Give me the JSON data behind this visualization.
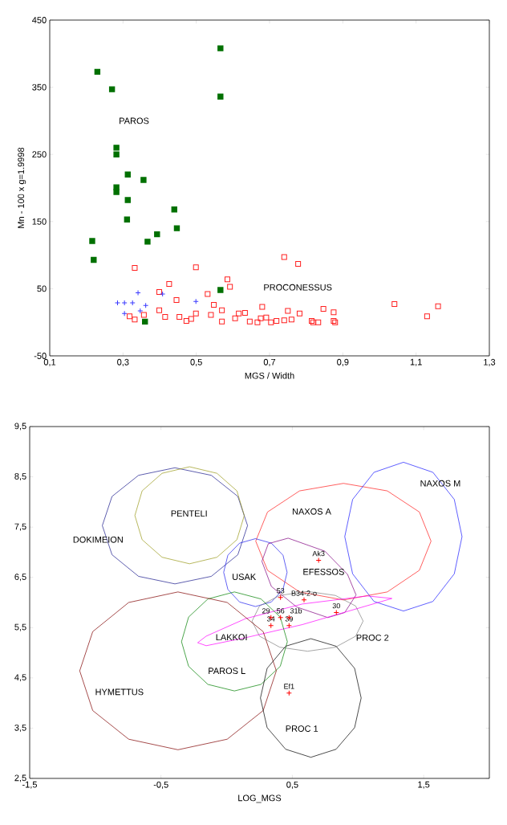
{
  "chart_data": [
    {
      "type": "scatter",
      "xlabel": "MGS / Width",
      "ylabel": "Mn - 100 x g=1.9998",
      "xlim": [
        0.1,
        1.3
      ],
      "ylim": [
        -50,
        450
      ],
      "xticks": [
        {
          "value": 0.1,
          "label": "0,1"
        },
        {
          "value": 0.3,
          "label": "0,3"
        },
        {
          "value": 0.5,
          "label": "0,5"
        },
        {
          "value": 0.7,
          "label": "0,7"
        },
        {
          "value": 0.9,
          "label": "0,9"
        },
        {
          "value": 1.1,
          "label": "1,1"
        },
        {
          "value": 1.3,
          "label": "1,3"
        }
      ],
      "yticks": [
        -50,
        50,
        150,
        250,
        350,
        450
      ],
      "series": [
        {
          "color": "#007000",
          "marker": "square",
          "x": [
            0.23,
            0.27,
            0.566,
            0.566,
            0.282,
            0.282,
            0.313,
            0.356,
            0.282,
            0.282,
            0.313,
            0.44,
            0.311,
            0.447,
            0.393,
            0.216,
            0.367,
            0.22,
            0.566,
            0.36
          ],
          "values": [
            373,
            347,
            408,
            336,
            260,
            250,
            220,
            212,
            201,
            194,
            182,
            168,
            153,
            140,
            131,
            121,
            120,
            93,
            48,
            1
          ]
        },
        {
          "color": "#ff2020",
          "marker": "square_open",
          "x": [
            0.332,
            0.499,
            0.74,
            0.778,
            0.426,
            0.585,
            0.592,
            0.399,
            0.531,
            0.446,
            0.548,
            0.68,
            0.75,
            0.782,
            0.57,
            0.399,
            0.318,
            0.332,
            0.357,
            0.415,
            0.454,
            0.473,
            0.486,
            0.499,
            0.54,
            0.57,
            0.606,
            0.616,
            0.633,
            0.646,
            0.667,
            0.676,
            0.691,
            0.704,
            0.719,
            0.74,
            0.76,
            0.815,
            0.819,
            0.833,
            0.847,
            0.875,
            0.875,
            0.879,
            1.041,
            1.13,
            1.16
          ],
          "values": [
            81,
            82,
            97,
            87,
            57,
            64,
            53,
            45,
            42,
            33,
            26,
            23,
            17,
            13,
            18,
            18,
            9,
            4,
            11,
            8,
            8,
            2,
            5,
            13,
            11,
            1,
            6,
            13,
            14,
            1,
            0,
            6,
            7,
            0,
            2,
            3,
            4,
            2,
            0,
            0,
            20,
            15,
            2,
            0,
            27,
            9,
            24
          ]
        },
        {
          "color": "#3a3aff",
          "marker": "cross",
          "x": [
            0.285,
            0.304,
            0.326,
            0.341,
            0.304,
            0.347,
            0.362,
            0.408,
            0.499
          ],
          "values": [
            29,
            29,
            29,
            44,
            13,
            17,
            25,
            42,
            31
          ]
        }
      ],
      "annotations": [
        "PAROS",
        "PROCONESSUS"
      ]
    },
    {
      "type": "scatter",
      "xlabel": "LOG_MGS",
      "xlim": [
        -1.5,
        2.0
      ],
      "ylim": [
        2.5,
        9.5
      ],
      "xticks": [
        {
          "value": -1.5,
          "label": "-1,5"
        },
        {
          "value": -0.5,
          "label": "-0,5"
        },
        {
          "value": 0.5,
          "label": "0,5"
        },
        {
          "value": 1.5,
          "label": "1,5"
        }
      ],
      "yticks": [
        {
          "value": 2.5,
          "label": "2,5"
        },
        {
          "value": 3.5,
          "label": "3,5"
        },
        {
          "value": 4.5,
          "label": "4,5"
        },
        {
          "value": 5.5,
          "label": "5,5"
        },
        {
          "value": 6.5,
          "label": "6,5"
        },
        {
          "value": 7.5,
          "label": "7,5"
        },
        {
          "value": 8.5,
          "label": "8,5"
        },
        {
          "value": 9.5,
          "label": "9,5"
        }
      ],
      "series": [
        {
          "type": "line",
          "color": "#1a1a8c",
          "x": [
            -0.947,
            -0.873,
            -0.671,
            -0.394,
            -0.117,
            0.085,
            0.159
          ],
          "values": [
            7.53,
            8.11,
            8.53,
            8.68,
            8.53,
            8.11,
            7.53
          ]
        },
        {
          "type": "line",
          "color": "#1a1a8c",
          "x": [
            -0.947,
            -0.873,
            -0.671,
            -0.394,
            -0.117,
            0.085,
            0.159
          ],
          "values": [
            7.53,
            6.95,
            6.52,
            6.37,
            6.52,
            6.95,
            7.53
          ]
        },
        {
          "type": "line",
          "color": "#9a9a1a",
          "x": [
            -0.699,
            -0.644,
            -0.492,
            -0.283,
            -0.074,
            0.078,
            0.134
          ],
          "values": [
            7.73,
            8.22,
            8.57,
            8.7,
            8.57,
            8.22,
            7.73
          ]
        },
        {
          "type": "line",
          "color": "#9a9a1a",
          "x": [
            -0.699,
            -0.644,
            -0.492,
            -0.283,
            -0.074,
            0.078,
            0.134
          ],
          "values": [
            7.73,
            7.25,
            6.9,
            6.77,
            6.9,
            7.25,
            7.73
          ]
        },
        {
          "type": "line",
          "color": "#ff1a1a",
          "x": [
            0.221,
            0.311,
            0.555,
            0.889,
            1.223,
            1.467,
            1.556
          ],
          "values": [
            7.22,
            7.8,
            8.22,
            8.37,
            8.22,
            7.8,
            7.22
          ]
        },
        {
          "type": "line",
          "color": "#ff1a1a",
          "x": [
            0.221,
            0.311,
            0.555,
            0.889,
            1.223,
            1.467,
            1.556
          ],
          "values": [
            7.22,
            6.64,
            6.21,
            6.05,
            6.21,
            6.64,
            7.22
          ]
        },
        {
          "type": "line",
          "color": "#1a1aff",
          "x": [
            0.899,
            0.959,
            1.122,
            1.346,
            1.57,
            1.733,
            1.792,
            null,
            0.899,
            0.959,
            1.122,
            1.346,
            1.57,
            1.733,
            1.792
          ],
          "values": [
            7.31,
            8.05,
            8.59,
            8.79,
            8.59,
            8.05,
            7.31,
            null,
            7.31,
            6.57,
            6.02,
            5.83,
            6.02,
            6.57,
            7.31
          ]
        },
        {
          "type": "line",
          "color": "#2020ee",
          "x": [
            -0.023,
            0.009,
            0.098,
            0.219,
            0.34,
            0.429,
            0.46
          ],
          "values": [
            6.6,
            6.94,
            7.18,
            7.27,
            7.18,
            6.94,
            6.6
          ]
        },
        {
          "type": "line",
          "color": "#2020ee",
          "x": [
            -0.023,
            0.009,
            0.098,
            0.219,
            0.34,
            0.429,
            0.46
          ],
          "values": [
            6.6,
            6.26,
            6.01,
            5.92,
            6.01,
            6.26,
            6.6
          ]
        },
        {
          "type": "line",
          "color": "#800080",
          "x": [
            0.268,
            0.317,
            0.468,
            0.748,
            0.92,
            0.985
          ],
          "values": [
            6.82,
            7.17,
            7.28,
            7.02,
            6.56,
            6.15
          ]
        },
        {
          "type": "line",
          "color": "#800080",
          "x": [
            0.268,
            0.34,
            0.533,
            0.77,
            0.899,
            0.985
          ],
          "values": [
            6.82,
            6.32,
            5.91,
            5.7,
            5.8,
            6.15
          ]
        },
        {
          "type": "line",
          "color": "#808080",
          "x": [
            0.193,
            0.25,
            0.404,
            0.616,
            0.828,
            0.982,
            1.039
          ],
          "values": [
            5.63,
            5.93,
            6.14,
            6.22,
            6.14,
            5.93,
            5.63
          ]
        },
        {
          "type": "line",
          "color": "#808080",
          "x": [
            0.193,
            0.25,
            0.404,
            0.616,
            0.828,
            0.982,
            1.039
          ],
          "values": [
            5.63,
            5.33,
            5.11,
            5.03,
            5.11,
            5.33,
            5.63
          ]
        },
        {
          "type": "line",
          "color": "#ff00ff",
          "x": [
            -0.221,
            -0.156,
            0.145,
            0.576,
            1.071,
            1.258
          ],
          "values": [
            5.2,
            5.33,
            5.68,
            5.97,
            6.13,
            6.08
          ]
        },
        {
          "type": "line",
          "color": "#ff00ff",
          "x": [
            -0.221,
            -0.156,
            0.145,
            0.576,
            1.114,
            1.258
          ],
          "values": [
            5.2,
            5.14,
            5.3,
            5.56,
            5.97,
            6.08
          ]
        },
        {
          "type": "line",
          "color": "#008000",
          "x": [
            -0.344,
            -0.29,
            -0.143,
            0.059,
            0.261,
            0.408,
            0.462
          ],
          "values": [
            5.22,
            5.71,
            6.07,
            6.21,
            6.07,
            5.71,
            5.22
          ]
        },
        {
          "type": "line",
          "color": "#008000",
          "x": [
            -0.344,
            -0.29,
            -0.143,
            0.059,
            0.261,
            0.408,
            0.462
          ],
          "values": [
            5.22,
            4.73,
            4.37,
            4.24,
            4.37,
            4.73,
            5.22
          ]
        },
        {
          "type": "line",
          "color": "#800000",
          "x": [
            -1.119,
            -1.02,
            -0.746,
            -0.371,
            0.004,
            0.278,
            0.378
          ],
          "values": [
            4.64,
            5.42,
            6.0,
            6.21,
            6.0,
            5.42,
            4.64
          ]
        },
        {
          "type": "line",
          "color": "#800000",
          "x": [
            -1.119,
            -1.02,
            -0.746,
            -0.371,
            0.004,
            0.278,
            0.378
          ],
          "values": [
            4.64,
            3.85,
            3.28,
            3.07,
            3.28,
            3.85,
            4.64
          ]
        },
        {
          "type": "line",
          "color": "#000000",
          "x": [
            0.257,
            0.308,
            0.449,
            0.641,
            0.833,
            0.974,
            1.024,
            null,
            0.257,
            0.308,
            0.449,
            0.641,
            0.833,
            0.974,
            1.024
          ],
          "values": [
            4.1,
            4.69,
            5.13,
            5.28,
            5.13,
            4.69,
            4.1,
            null,
            4.1,
            3.51,
            3.08,
            2.92,
            3.08,
            3.51,
            4.1
          ]
        },
        {
          "color": "#ff0000",
          "marker": "cross",
          "x": [
            0.7,
            0.41,
            0.589,
            0.835,
            0.337,
            0.41,
            0.475,
            0.337,
            0.475,
            0.475
          ],
          "values": [
            6.84,
            6.1,
            6.05,
            5.8,
            5.7,
            5.7,
            5.7,
            5.54,
            5.54,
            4.2
          ]
        }
      ],
      "annotations": [
        "DOKIMEION",
        "PENTELI",
        "NAXOS A",
        "NAXOS M",
        "USAK",
        "EFESSOS",
        "PROC 2",
        "LAKKOI",
        "PAROS L",
        "HYMETTUS",
        "PROC 1",
        {
          "text": "Ak3",
          "x": 0.7,
          "y": 6.84
        },
        {
          "text": "53",
          "x": 0.41,
          "y": 6.1
        },
        {
          "text": "B34-2-o",
          "x": 0.589,
          "y": 6.05
        },
        {
          "text": "30",
          "x": 0.835,
          "y": 5.8
        },
        {
          "text": "29",
          "x": 0.337,
          "y": 5.7
        },
        {
          "text": "56",
          "x": 0.41,
          "y": 5.7
        },
        {
          "text": "31b",
          "x": 0.475,
          "y": 5.7
        },
        {
          "text": "34",
          "x": 0.337,
          "y": 5.54
        },
        {
          "text": "39",
          "x": 0.475,
          "y": 5.54
        },
        {
          "text": "Ef1",
          "x": 0.475,
          "y": 4.2
        }
      ]
    }
  ]
}
